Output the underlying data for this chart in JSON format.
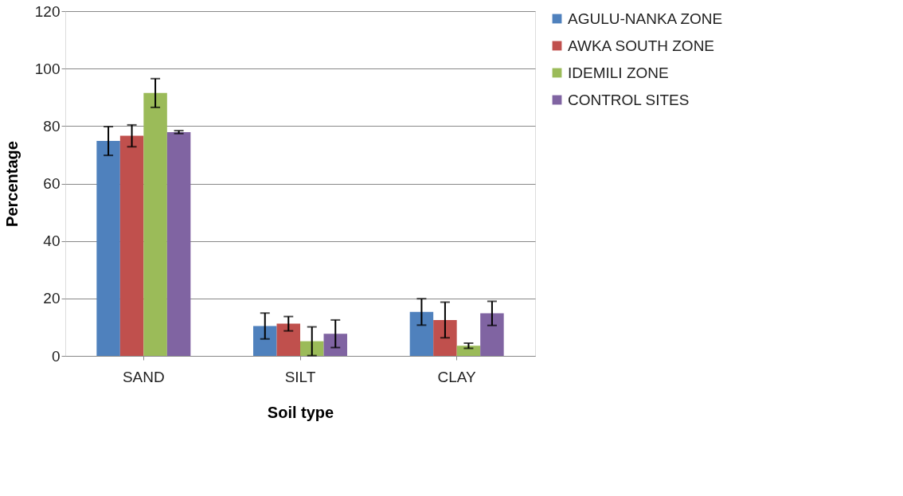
{
  "chart_data": {
    "type": "bar",
    "xlabel": "Soil type",
    "ylabel": "Percentage",
    "categories": [
      "SAND",
      "SILT",
      "CLAY"
    ],
    "series": [
      {
        "name": "AGULU-NANKA ZONE",
        "color": "#4f81bd",
        "values": [
          74.8,
          10.4,
          15.3
        ],
        "errors": [
          5,
          4.5,
          4.6
        ]
      },
      {
        "name": "AWKA SOUTH ZONE",
        "color": "#c0504d",
        "values": [
          76.6,
          11.2,
          12.5
        ],
        "errors": [
          3.8,
          2.5,
          6.2
        ]
      },
      {
        "name": "IDEMILI ZONE",
        "color": "#9bbb59",
        "values": [
          91.5,
          5.1,
          3.5
        ],
        "errors": [
          5,
          5,
          0.9
        ]
      },
      {
        "name": "CONTROL SITES",
        "color": "#8064a2",
        "values": [
          77.9,
          7.7,
          14.8
        ],
        "errors": [
          0.5,
          4.8,
          4.2
        ]
      }
    ],
    "ylim": [
      0,
      120
    ],
    "yticks": [
      0,
      20,
      40,
      60,
      80,
      100,
      120
    ],
    "grid": "y",
    "legend": "right"
  }
}
